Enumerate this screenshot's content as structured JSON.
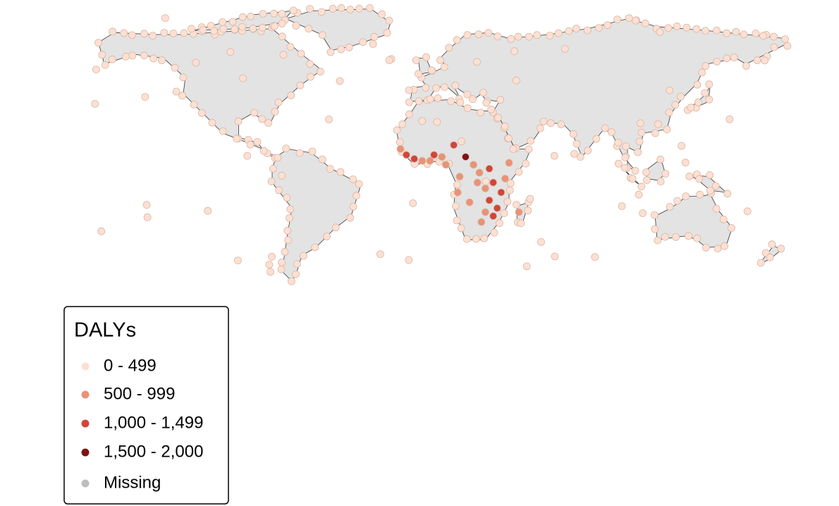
{
  "legend": {
    "title": "DALYs",
    "items": [
      {
        "label": "0 - 499",
        "color": "#fde0d2"
      },
      {
        "label": "500 - 999",
        "color": "#ea9274"
      },
      {
        "label": "1,000 - 1,499",
        "color": "#d1453a"
      },
      {
        "label": "1,500 - 2,000",
        "color": "#7d1414"
      },
      {
        "label": "Missing",
        "color": "#bdbdbd"
      }
    ]
  }
}
